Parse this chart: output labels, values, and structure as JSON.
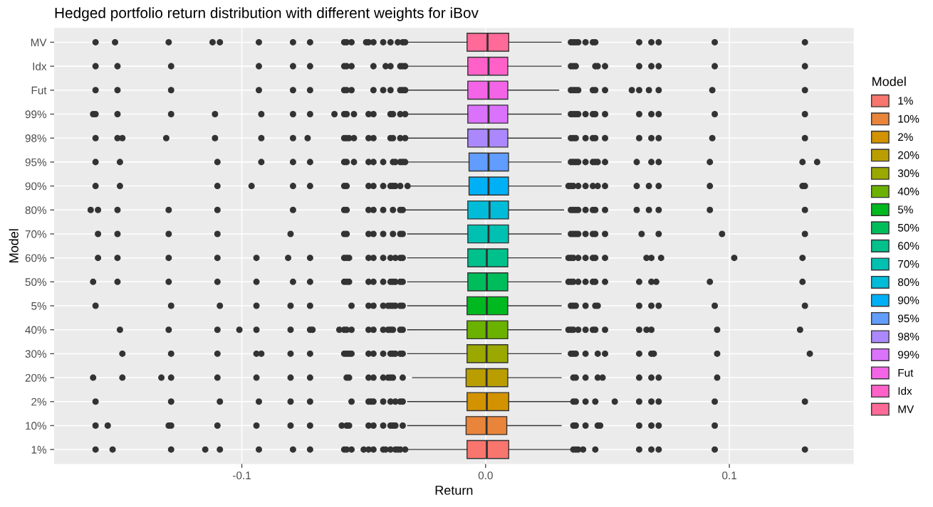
{
  "chart_data": {
    "type": "box",
    "orientation": "horizontal",
    "title": "Hedged portfolio return distribution with different weights for iBov",
    "xlabel": "Return",
    "ylabel": "Model",
    "legend_title": "Model",
    "legend": "right",
    "grid": true,
    "xlim": [
      -0.177,
      0.151
    ],
    "xticks": [
      {
        "value": -0.1,
        "label": "-0.1"
      },
      {
        "value": 0,
        "label": "0.0"
      },
      {
        "value": 0.1,
        "label": "0.1"
      }
    ],
    "categories": [
      "MV",
      "Idx",
      "Fut",
      "99%",
      "98%",
      "95%",
      "90%",
      "80%",
      "70%",
      "60%",
      "50%",
      "5%",
      "40%",
      "30%",
      "20%",
      "2%",
      "10%",
      "1%"
    ],
    "series": [
      {
        "name": "1%",
        "color": "#F8766D",
        "boxes": [
          null,
          null,
          null,
          null,
          null,
          null,
          null,
          null,
          null,
          null,
          null,
          null,
          null,
          null,
          null,
          null,
          null,
          {
            "low": -0.032,
            "q1": -0.0076,
            "median": 0.0005,
            "q3": 0.0095,
            "high": 0.035,
            "outliers": [
              -0.16,
              -0.153,
              -0.129,
              -0.115,
              -0.109,
              -0.093,
              -0.079,
              -0.072,
              -0.058,
              -0.057,
              -0.055,
              -0.05,
              -0.048,
              -0.046,
              -0.042,
              -0.041,
              -0.039,
              -0.037,
              -0.036,
              -0.035,
              -0.033,
              0.036,
              0.037,
              0.038,
              0.04,
              0.045,
              0.063,
              0.068,
              0.071,
              0.094,
              0.131
            ]
          }
        ]
      },
      {
        "name": "10%",
        "color": "#E8853A",
        "boxes": [
          null,
          null,
          null,
          null,
          null,
          null,
          null,
          null,
          null,
          null,
          null,
          null,
          null,
          null,
          null,
          null,
          {
            "low": -0.032,
            "q1": -0.008,
            "median": 0.0004,
            "q3": 0.0087,
            "high": 0.031,
            "outliers": [
              -0.16,
              -0.155,
              -0.13,
              -0.129,
              -0.11,
              -0.094,
              -0.08,
              -0.072,
              -0.059,
              -0.057,
              -0.056,
              -0.048,
              -0.046,
              -0.042,
              -0.039,
              -0.038,
              -0.037,
              -0.034,
              0.036,
              0.037,
              0.041,
              0.046,
              0.047,
              0.063,
              0.068,
              0.071,
              0.094
            ]
          },
          null
        ]
      },
      {
        "name": "2%",
        "color": "#D39200",
        "boxes": [
          null,
          null,
          null,
          null,
          null,
          null,
          null,
          null,
          null,
          null,
          null,
          null,
          null,
          null,
          null,
          {
            "low": -0.032,
            "q1": -0.0076,
            "median": 0.0005,
            "q3": 0.0095,
            "high": 0.035,
            "outliers": [
              -0.16,
              -0.129,
              -0.109,
              -0.093,
              -0.08,
              -0.072,
              -0.055,
              -0.048,
              -0.047,
              -0.046,
              -0.042,
              -0.039,
              -0.037,
              -0.035,
              -0.034,
              0.036,
              0.037,
              0.041,
              0.045,
              0.053,
              0.063,
              0.068,
              0.071,
              0.094,
              0.131
            ]
          },
          null,
          null
        ]
      },
      {
        "name": "20%",
        "color": "#BA9E00",
        "boxes": [
          null,
          null,
          null,
          null,
          null,
          null,
          null,
          null,
          null,
          null,
          null,
          null,
          null,
          null,
          {
            "low": -0.03,
            "q1": -0.008,
            "median": 0.0004,
            "q3": 0.0091,
            "high": 0.031,
            "outliers": [
              -0.161,
              -0.149,
              -0.133,
              -0.129,
              -0.11,
              -0.094,
              -0.08,
              -0.072,
              -0.057,
              -0.056,
              -0.048,
              -0.046,
              -0.042,
              -0.04,
              -0.039,
              -0.038,
              -0.034,
              0.036,
              0.037,
              0.041,
              0.046,
              0.048,
              0.063,
              0.068,
              0.071,
              0.095
            ]
          },
          null,
          null,
          null
        ]
      },
      {
        "name": "30%",
        "color": "#9AA800",
        "boxes": [
          null,
          null,
          null,
          null,
          null,
          null,
          null,
          null,
          null,
          null,
          null,
          null,
          null,
          {
            "low": -0.032,
            "q1": -0.0076,
            "median": 0.0004,
            "q3": 0.0091,
            "high": 0.031,
            "outliers": [
              -0.149,
              -0.129,
              -0.11,
              -0.094,
              -0.092,
              -0.08,
              -0.072,
              -0.058,
              -0.057,
              -0.056,
              -0.055,
              -0.048,
              -0.046,
              -0.042,
              -0.039,
              -0.038,
              -0.037,
              -0.035,
              -0.034,
              0.035,
              0.036,
              0.037,
              0.041,
              0.046,
              0.049,
              0.063,
              0.068,
              0.069,
              0.095,
              0.133
            ]
          },
          null,
          null,
          null,
          null
        ]
      },
      {
        "name": "40%",
        "color": "#6BB100",
        "boxes": [
          null,
          null,
          null,
          null,
          null,
          null,
          null,
          null,
          null,
          null,
          null,
          null,
          {
            "low": -0.032,
            "q1": -0.0076,
            "median": 0.0004,
            "q3": 0.0091,
            "high": 0.031,
            "outliers": [
              -0.15,
              -0.13,
              -0.11,
              -0.101,
              -0.094,
              -0.08,
              -0.072,
              -0.071,
              -0.06,
              -0.058,
              -0.057,
              -0.055,
              -0.048,
              -0.046,
              -0.042,
              -0.04,
              -0.039,
              -0.038,
              -0.035,
              -0.034,
              0.034,
              0.035,
              0.036,
              0.038,
              0.041,
              0.044,
              0.045,
              0.049,
              0.063,
              0.066,
              0.068,
              0.095,
              0.129
            ]
          },
          null,
          null,
          null,
          null,
          null
        ]
      },
      {
        "name": "5%",
        "color": "#00B81F",
        "boxes": [
          null,
          null,
          null,
          null,
          null,
          null,
          null,
          null,
          null,
          null,
          null,
          {
            "low": -0.032,
            "q1": -0.0076,
            "median": 0.0005,
            "q3": 0.0091,
            "high": 0.031,
            "outliers": [
              -0.16,
              -0.129,
              -0.109,
              -0.094,
              -0.08,
              -0.072,
              -0.055,
              -0.048,
              -0.046,
              -0.042,
              -0.04,
              -0.039,
              -0.038,
              -0.037,
              -0.035,
              -0.034,
              0.035,
              0.036,
              0.037,
              0.041,
              0.045,
              0.046,
              0.063,
              0.068,
              0.071,
              0.094,
              0.131
            ]
          },
          null,
          null,
          null,
          null,
          null,
          null
        ]
      },
      {
        "name": "50%",
        "color": "#00BD5C",
        "boxes": [
          null,
          null,
          null,
          null,
          null,
          null,
          null,
          null,
          null,
          null,
          {
            "low": -0.032,
            "q1": -0.0073,
            "median": 0.0005,
            "q3": 0.0091,
            "high": 0.031,
            "outliers": [
              -0.161,
              -0.151,
              -0.13,
              -0.11,
              -0.094,
              -0.079,
              -0.072,
              -0.058,
              -0.057,
              -0.056,
              -0.048,
              -0.046,
              -0.042,
              -0.039,
              -0.038,
              -0.037,
              -0.035,
              -0.034,
              0.034,
              0.035,
              0.036,
              0.038,
              0.041,
              0.044,
              0.045,
              0.049,
              0.063,
              0.068,
              0.07,
              0.092,
              0.13
            ]
          },
          null,
          null,
          null,
          null,
          null,
          null,
          null
        ]
      },
      {
        "name": "60%",
        "color": "#00C08B",
        "boxes": [
          null,
          null,
          null,
          null,
          null,
          null,
          null,
          null,
          null,
          {
            "low": -0.032,
            "q1": -0.0073,
            "median": 0.0005,
            "q3": 0.0091,
            "high": 0.031,
            "outliers": [
              -0.159,
              -0.151,
              -0.13,
              -0.11,
              -0.094,
              -0.081,
              -0.072,
              -0.058,
              -0.057,
              -0.056,
              -0.048,
              -0.046,
              -0.042,
              -0.039,
              -0.037,
              -0.035,
              -0.034,
              0.034,
              0.035,
              0.036,
              0.038,
              0.041,
              0.044,
              0.045,
              0.049,
              0.066,
              0.068,
              0.072,
              0.102,
              0.13
            ]
          },
          null,
          null,
          null,
          null,
          null,
          null,
          null,
          null
        ]
      },
      {
        "name": "70%",
        "color": "#00C0B2",
        "boxes": [
          null,
          null,
          null,
          null,
          null,
          null,
          null,
          null,
          {
            "low": -0.032,
            "q1": -0.0073,
            "median": 0.0012,
            "q3": 0.0094,
            "high": 0.031,
            "outliers": [
              -0.159,
              -0.151,
              -0.13,
              -0.11,
              -0.08,
              -0.058,
              -0.057,
              -0.048,
              -0.046,
              -0.042,
              -0.038,
              -0.035,
              -0.034,
              0.035,
              0.036,
              0.037,
              0.038,
              0.041,
              0.044,
              0.045,
              0.049,
              0.064,
              0.071,
              0.097,
              0.131
            ]
          },
          null,
          null,
          null,
          null,
          null,
          null,
          null,
          null,
          null
        ]
      },
      {
        "name": "80%",
        "color": "#00BCD8",
        "boxes": [
          null,
          null,
          null,
          null,
          null,
          null,
          null,
          {
            "low": -0.033,
            "q1": -0.0073,
            "median": 0.0016,
            "q3": 0.0094,
            "high": 0.032,
            "outliers": [
              -0.162,
              -0.159,
              -0.151,
              -0.13,
              -0.11,
              -0.079,
              -0.058,
              -0.057,
              -0.048,
              -0.046,
              -0.042,
              -0.038,
              -0.035,
              -0.034,
              0.035,
              0.036,
              0.037,
              0.038,
              0.041,
              0.044,
              0.045,
              0.049,
              0.062,
              0.067,
              0.071,
              0.092,
              0.131
            ]
          },
          null,
          null,
          null,
          null,
          null,
          null,
          null,
          null,
          null,
          null
        ]
      },
      {
        "name": "90%",
        "color": "#00B0F6",
        "boxes": [
          null,
          null,
          null,
          null,
          null,
          null,
          {
            "low": -0.031,
            "q1": -0.0068,
            "median": 0.0012,
            "q3": 0.0094,
            "high": 0.031,
            "outliers": [
              -0.16,
              -0.15,
              -0.11,
              -0.096,
              -0.079,
              -0.072,
              -0.058,
              -0.057,
              -0.048,
              -0.046,
              -0.042,
              -0.039,
              -0.038,
              -0.037,
              -0.035,
              -0.032,
              0.034,
              0.035,
              0.036,
              0.038,
              0.041,
              0.044,
              0.046,
              0.049,
              0.062,
              0.067,
              0.071,
              0.092,
              0.13,
              0.131
            ]
          },
          null,
          null,
          null,
          null,
          null,
          null,
          null,
          null,
          null,
          null,
          null
        ]
      },
      {
        "name": "95%",
        "color": "#619CFF",
        "boxes": [
          null,
          null,
          null,
          null,
          null,
          {
            "low": -0.032,
            "q1": -0.0068,
            "median": 0.0012,
            "q3": 0.0094,
            "high": 0.031,
            "outliers": [
              -0.16,
              -0.15,
              -0.11,
              -0.092,
              -0.079,
              -0.072,
              -0.058,
              -0.057,
              -0.054,
              -0.048,
              -0.046,
              -0.042,
              -0.038,
              -0.037,
              -0.035,
              -0.034,
              -0.033,
              0.035,
              0.036,
              0.037,
              0.038,
              0.041,
              0.044,
              0.045,
              0.046,
              0.049,
              0.062,
              0.068,
              0.071,
              0.092,
              0.13,
              0.136
            ]
          },
          null,
          null,
          null,
          null,
          null,
          null,
          null,
          null,
          null,
          null,
          null,
          null
        ]
      },
      {
        "name": "98%",
        "color": "#AC88FF",
        "boxes": [
          null,
          null,
          null,
          null,
          {
            "low": -0.032,
            "q1": -0.0073,
            "median": 0.0012,
            "q3": 0.0091,
            "high": 0.031,
            "outliers": [
              -0.16,
              -0.151,
              -0.149,
              -0.131,
              -0.111,
              -0.092,
              -0.079,
              -0.073,
              -0.058,
              -0.057,
              -0.056,
              -0.054,
              -0.048,
              -0.046,
              -0.039,
              -0.038,
              -0.035,
              -0.033,
              0.035,
              0.036,
              0.037,
              0.041,
              0.044,
              0.045,
              0.049,
              0.063,
              0.068,
              0.071,
              0.093,
              0.131
            ]
          },
          null,
          null,
          null,
          null,
          null,
          null,
          null,
          null,
          null,
          null,
          null,
          null,
          null
        ]
      },
      {
        "name": "99%",
        "color": "#DB72FB",
        "boxes": [
          null,
          null,
          null,
          {
            "low": -0.032,
            "q1": -0.0073,
            "median": 0.0012,
            "q3": 0.0091,
            "high": 0.031,
            "outliers": [
              -0.161,
              -0.16,
              -0.151,
              -0.129,
              -0.111,
              -0.092,
              -0.079,
              -0.072,
              -0.062,
              -0.058,
              -0.057,
              -0.054,
              -0.048,
              -0.046,
              -0.039,
              -0.038,
              -0.035,
              -0.033,
              0.035,
              0.036,
              0.037,
              0.038,
              0.041,
              0.044,
              0.045,
              0.049,
              0.063,
              0.068,
              0.071,
              0.094,
              0.131
            ]
          },
          null,
          null,
          null,
          null,
          null,
          null,
          null,
          null,
          null,
          null,
          null,
          null,
          null,
          null
        ]
      },
      {
        "name": "Fut",
        "color": "#F365E6",
        "boxes": [
          null,
          null,
          {
            "low": -0.032,
            "q1": -0.0073,
            "median": 0.0012,
            "q3": 0.0091,
            "high": 0.03,
            "outliers": [
              -0.16,
              -0.151,
              -0.129,
              -0.093,
              -0.079,
              -0.072,
              -0.058,
              -0.057,
              -0.055,
              -0.046,
              -0.042,
              -0.039,
              -0.035,
              -0.034,
              -0.033,
              0.035,
              0.036,
              0.037,
              0.038,
              0.044,
              0.045,
              0.049,
              0.06,
              0.063,
              0.067,
              0.071,
              0.093,
              0.131
            ]
          },
          null,
          null,
          null,
          null,
          null,
          null,
          null,
          null,
          null,
          null,
          null,
          null,
          null,
          null,
          null
        ]
      },
      {
        "name": "Idx",
        "color": "#FF61C9",
        "boxes": [
          null,
          {
            "low": -0.032,
            "q1": -0.0073,
            "median": 0.0012,
            "q3": 0.0091,
            "high": 0.031,
            "outliers": [
              -0.16,
              -0.151,
              -0.129,
              -0.093,
              -0.079,
              -0.072,
              -0.058,
              -0.057,
              -0.055,
              -0.046,
              -0.041,
              -0.039,
              -0.035,
              -0.034,
              -0.033,
              0.035,
              0.036,
              0.037,
              0.045,
              0.046,
              0.049,
              0.063,
              0.068,
              0.071,
              0.094,
              0.131
            ]
          },
          null,
          null,
          null,
          null,
          null,
          null,
          null,
          null,
          null,
          null,
          null,
          null,
          null,
          null,
          null,
          null
        ]
      },
      {
        "name": "MV",
        "color": "#FF6A98",
        "boxes": [
          {
            "low": -0.032,
            "q1": -0.0076,
            "median": 0.0008,
            "q3": 0.0095,
            "high": 0.031,
            "outliers": [
              -0.16,
              -0.152,
              -0.13,
              -0.112,
              -0.109,
              -0.093,
              -0.079,
              -0.072,
              -0.058,
              -0.057,
              -0.055,
              -0.049,
              -0.048,
              -0.046,
              -0.042,
              -0.039,
              -0.036,
              -0.034,
              -0.033,
              0.035,
              0.036,
              0.037,
              0.038,
              0.041,
              0.044,
              0.045,
              0.063,
              0.068,
              0.071,
              0.094,
              0.131
            ]
          },
          null,
          null,
          null,
          null,
          null,
          null,
          null,
          null,
          null,
          null,
          null,
          null,
          null,
          null,
          null,
          null,
          null
        ]
      }
    ]
  }
}
